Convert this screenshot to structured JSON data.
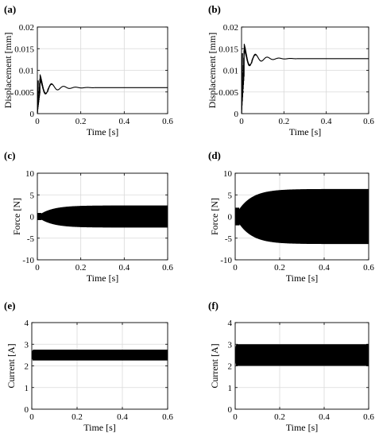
{
  "figure": {
    "background": "#ffffff",
    "line_color": "#000000",
    "grid_color": "#d9d9d9"
  },
  "chart_data": [
    {
      "panel": "(a)",
      "type": "line",
      "subtype": "damped_oscillation",
      "xlabel": "Time [s]",
      "ylabel": "Displacement [mm]",
      "xlim": [
        0,
        0.6
      ],
      "ylim": [
        0,
        0.02
      ],
      "xticks": [
        "0",
        "0.2",
        "0.4",
        "0.6"
      ],
      "yticks": [
        "0",
        "0.005",
        "0.01",
        "0.015",
        "0.02"
      ],
      "xtick_values": [
        0,
        0.2,
        0.4,
        0.6
      ],
      "ytick_values": [
        0,
        0.005,
        0.01,
        0.015,
        0.02
      ],
      "grid": true,
      "steady_value": 0.006,
      "first_peak_max": 0.0085,
      "first_peak_min": 0.003,
      "decay_end_time": 0.25
    },
    {
      "panel": "(b)",
      "type": "line",
      "subtype": "damped_oscillation",
      "xlabel": "Time [s]",
      "ylabel": "Displacement [mm]",
      "xlim": [
        0,
        0.6
      ],
      "ylim": [
        0,
        0.02
      ],
      "xticks": [
        "0",
        "0.2",
        "0.4",
        "0.6"
      ],
      "yticks": [
        "0",
        "0.005",
        "0.01",
        "0.015",
        "0.02"
      ],
      "xtick_values": [
        0,
        0.2,
        0.4,
        0.6
      ],
      "ytick_values": [
        0,
        0.005,
        0.01,
        0.015,
        0.02
      ],
      "grid": true,
      "steady_value": 0.0127,
      "first_peak_max": 0.0155,
      "first_peak_min": 0.005,
      "decay_end_time": 0.25
    },
    {
      "panel": "(c)",
      "type": "area",
      "subtype": "oscillation_envelope",
      "xlabel": "Time [s]",
      "ylabel": "Force [N]",
      "xlim": [
        0,
        0.6
      ],
      "ylim": [
        -10,
        10
      ],
      "xticks": [
        "0",
        "0.2",
        "0.4",
        "0.6"
      ],
      "yticks": [
        "-10",
        "-5",
        "0",
        "5",
        "10"
      ],
      "xtick_values": [
        0,
        0.2,
        0.4,
        0.6
      ],
      "ytick_values": [
        -10,
        -5,
        0,
        5,
        10
      ],
      "grid": true,
      "center": 0,
      "amplitude": 2.5,
      "rise_time": 0.2
    },
    {
      "panel": "(d)",
      "type": "area",
      "subtype": "oscillation_envelope",
      "xlabel": "Time [s]",
      "ylabel": "Force [N]",
      "xlim": [
        0,
        0.6
      ],
      "ylim": [
        -10,
        10
      ],
      "xticks": [
        "0",
        "0.2",
        "0.4",
        "0.6"
      ],
      "yticks": [
        "-10",
        "-5",
        "0",
        "5",
        "10"
      ],
      "xtick_values": [
        0,
        0.2,
        0.4,
        0.6
      ],
      "ytick_values": [
        -10,
        -5,
        0,
        5,
        10
      ],
      "grid": true,
      "center": 0,
      "amplitude": 6.3,
      "rise_time": 0.2
    },
    {
      "panel": "(e)",
      "type": "area",
      "subtype": "oscillation_band",
      "xlabel": "Time [s]",
      "ylabel": "Current [A]",
      "xlim": [
        0,
        0.6
      ],
      "ylim": [
        0,
        4
      ],
      "xticks": [
        "0",
        "0.2",
        "0.4",
        "0.6"
      ],
      "yticks": [
        "0",
        "1",
        "2",
        "3",
        "4"
      ],
      "xtick_values": [
        0,
        0.2,
        0.4,
        0.6
      ],
      "ytick_values": [
        0,
        1,
        2,
        3,
        4
      ],
      "grid": true,
      "center": 2.5,
      "amplitude": 0.25
    },
    {
      "panel": "(f)",
      "type": "area",
      "subtype": "oscillation_band",
      "xlabel": "Time [s]",
      "ylabel": "Current [A]",
      "xlim": [
        0,
        0.6
      ],
      "ylim": [
        0,
        4
      ],
      "xticks": [
        "0",
        "0.2",
        "0.4",
        "0.6"
      ],
      "yticks": [
        "0",
        "1",
        "2",
        "3",
        "4"
      ],
      "xtick_values": [
        0,
        0.2,
        0.4,
        0.6
      ],
      "ytick_values": [
        0,
        1,
        2,
        3,
        4
      ],
      "grid": true,
      "center": 2.5,
      "amplitude": 0.5
    }
  ]
}
